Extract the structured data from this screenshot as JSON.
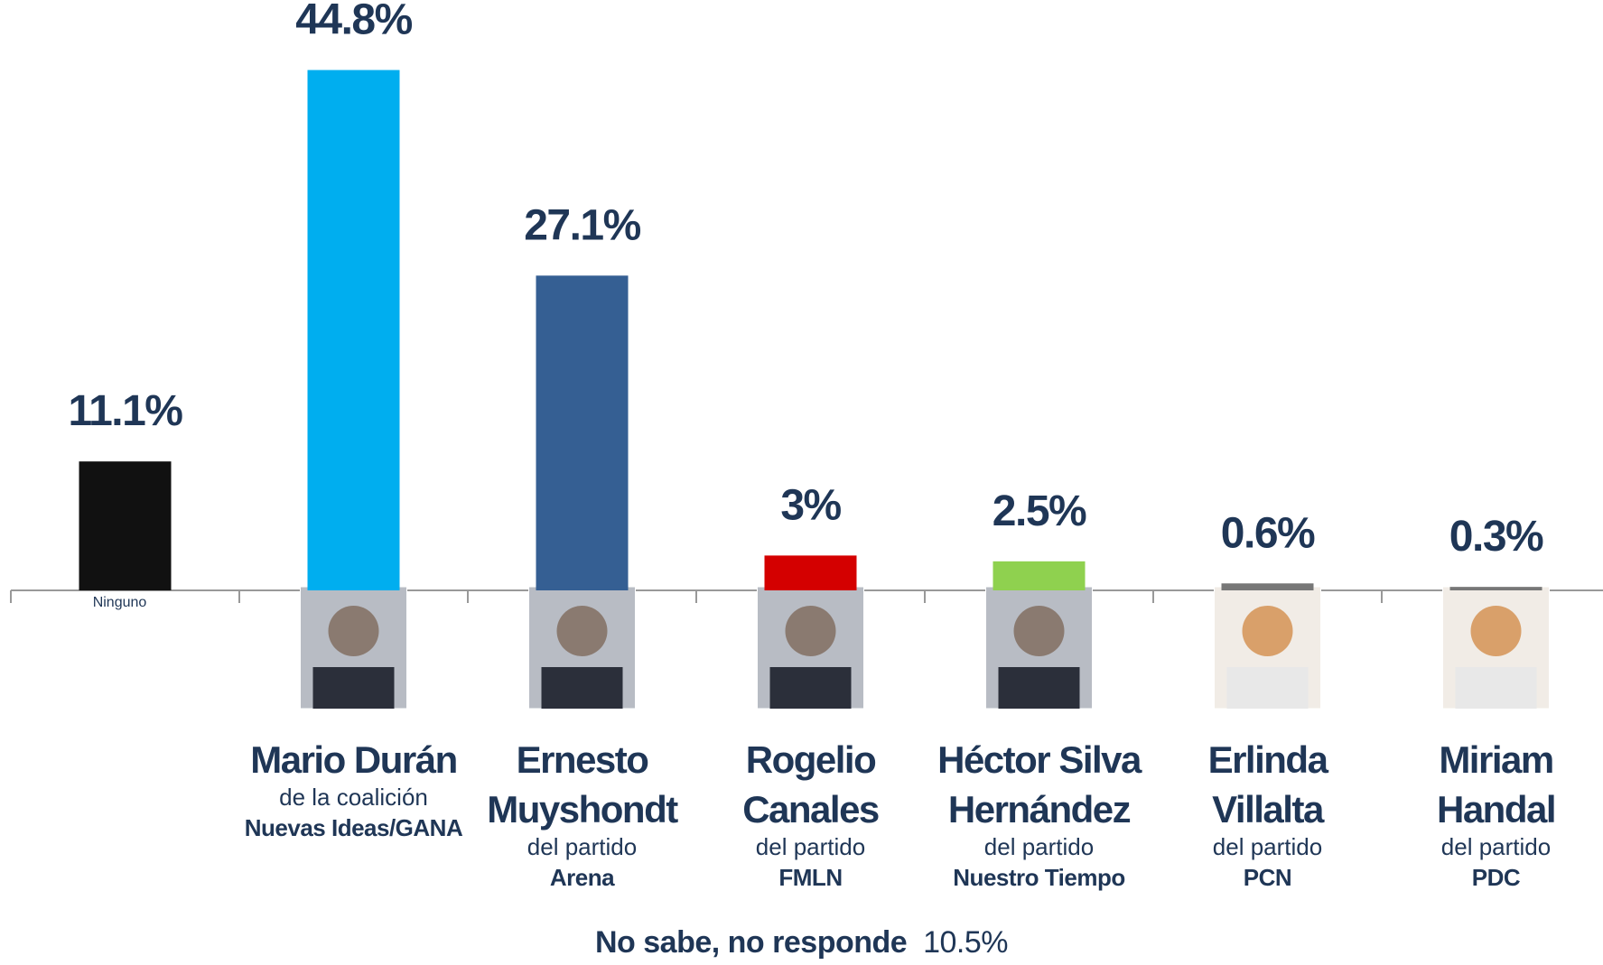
{
  "chart_data": {
    "type": "bar",
    "categories": [
      "Ninguno",
      "Mario Durán",
      "Ernesto Muyshondt",
      "Rogelio Canales",
      "Héctor Silva Hernández",
      "Erlinda Villalta",
      "Miriam Handal"
    ],
    "subtitles": [
      null,
      "de la coalición",
      "del partido",
      "del partido",
      "del partido",
      "del partido",
      "del partido"
    ],
    "parties": [
      null,
      "Nuevas Ideas/GANA",
      "Arena",
      "FMLN",
      "Nuestro Tiempo",
      "PCN",
      "PDC"
    ],
    "values": [
      11.1,
      44.8,
      27.1,
      3,
      2.5,
      0.6,
      0.3
    ],
    "value_labels": [
      "11.1%",
      "44.8%",
      "27.1%",
      "3%",
      "2.5%",
      "0.6%",
      "0.3%"
    ],
    "colors": [
      "#111111",
      "#00aeef",
      "#355f93",
      "#d40000",
      "#8fd14f",
      "#777777",
      "#777777"
    ],
    "ylim": [
      0,
      45
    ],
    "footnote_label": "No sabe, no responde",
    "footnote_value": "10.5%"
  }
}
